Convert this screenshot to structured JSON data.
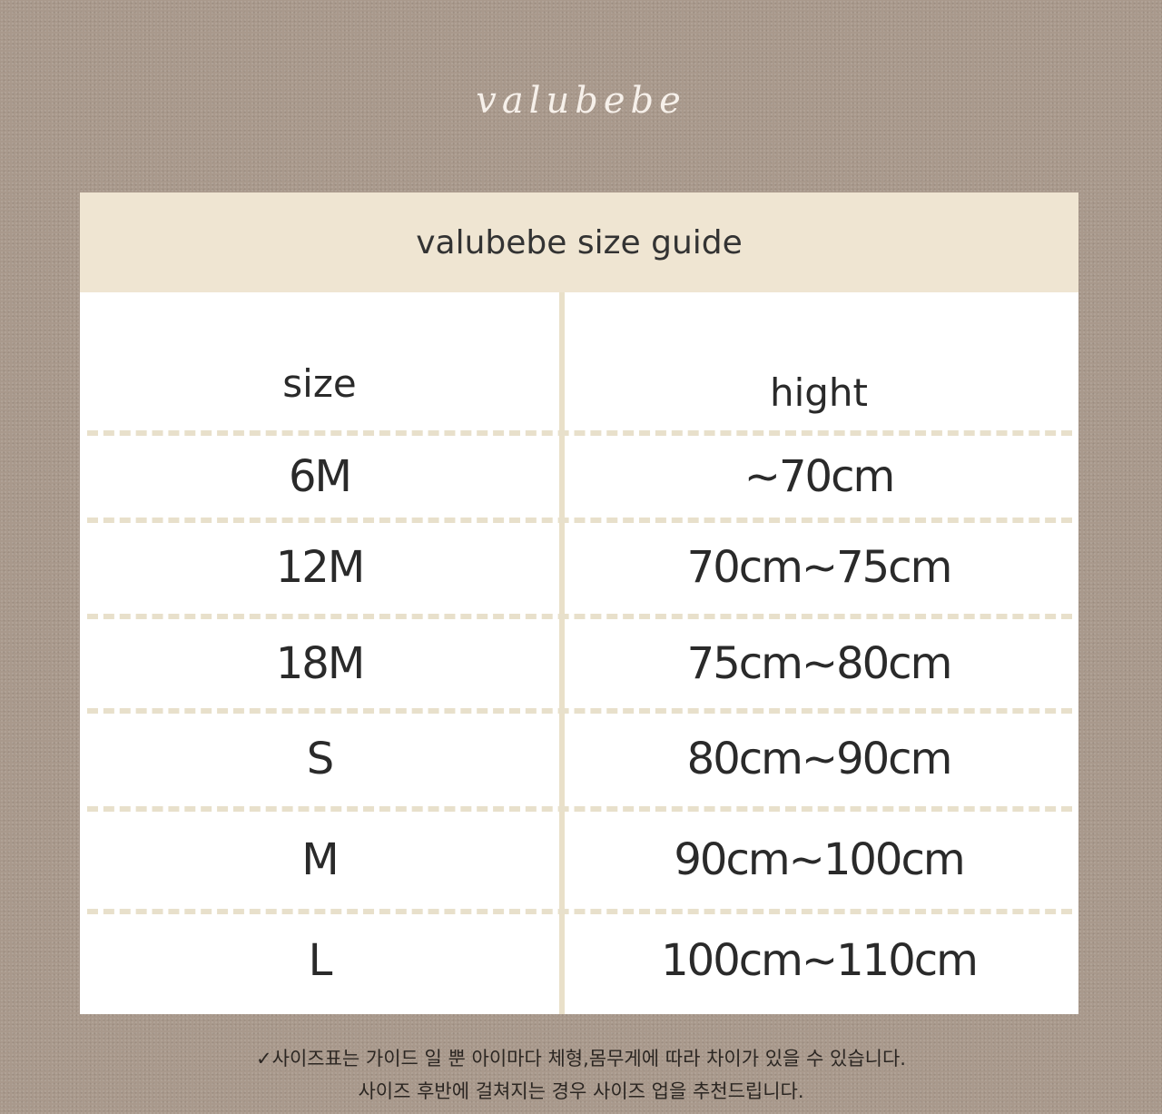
{
  "logo": "valubebe",
  "title": "valubebe size guide",
  "headers": {
    "size": "size",
    "height": "hight"
  },
  "rows": [
    {
      "size": "6M",
      "height": "~70cm"
    },
    {
      "size": "12M",
      "height": "70cm~75cm"
    },
    {
      "size": "18M",
      "height": "75cm~80cm"
    },
    {
      "size": "S",
      "height": "80cm~90cm"
    },
    {
      "size": "M",
      "height": "90cm~100cm"
    },
    {
      "size": "L",
      "height": "100cm~110cm"
    }
  ],
  "notes": [
    "✓사이즈표는 가이드 일 뿐 아이마다 체형,몸무게에 따라 차이가 있을 수 있습니다.",
    "사이즈 후반에 걸쳐지는 경우 사이즈 업을 추천드립니다."
  ]
}
